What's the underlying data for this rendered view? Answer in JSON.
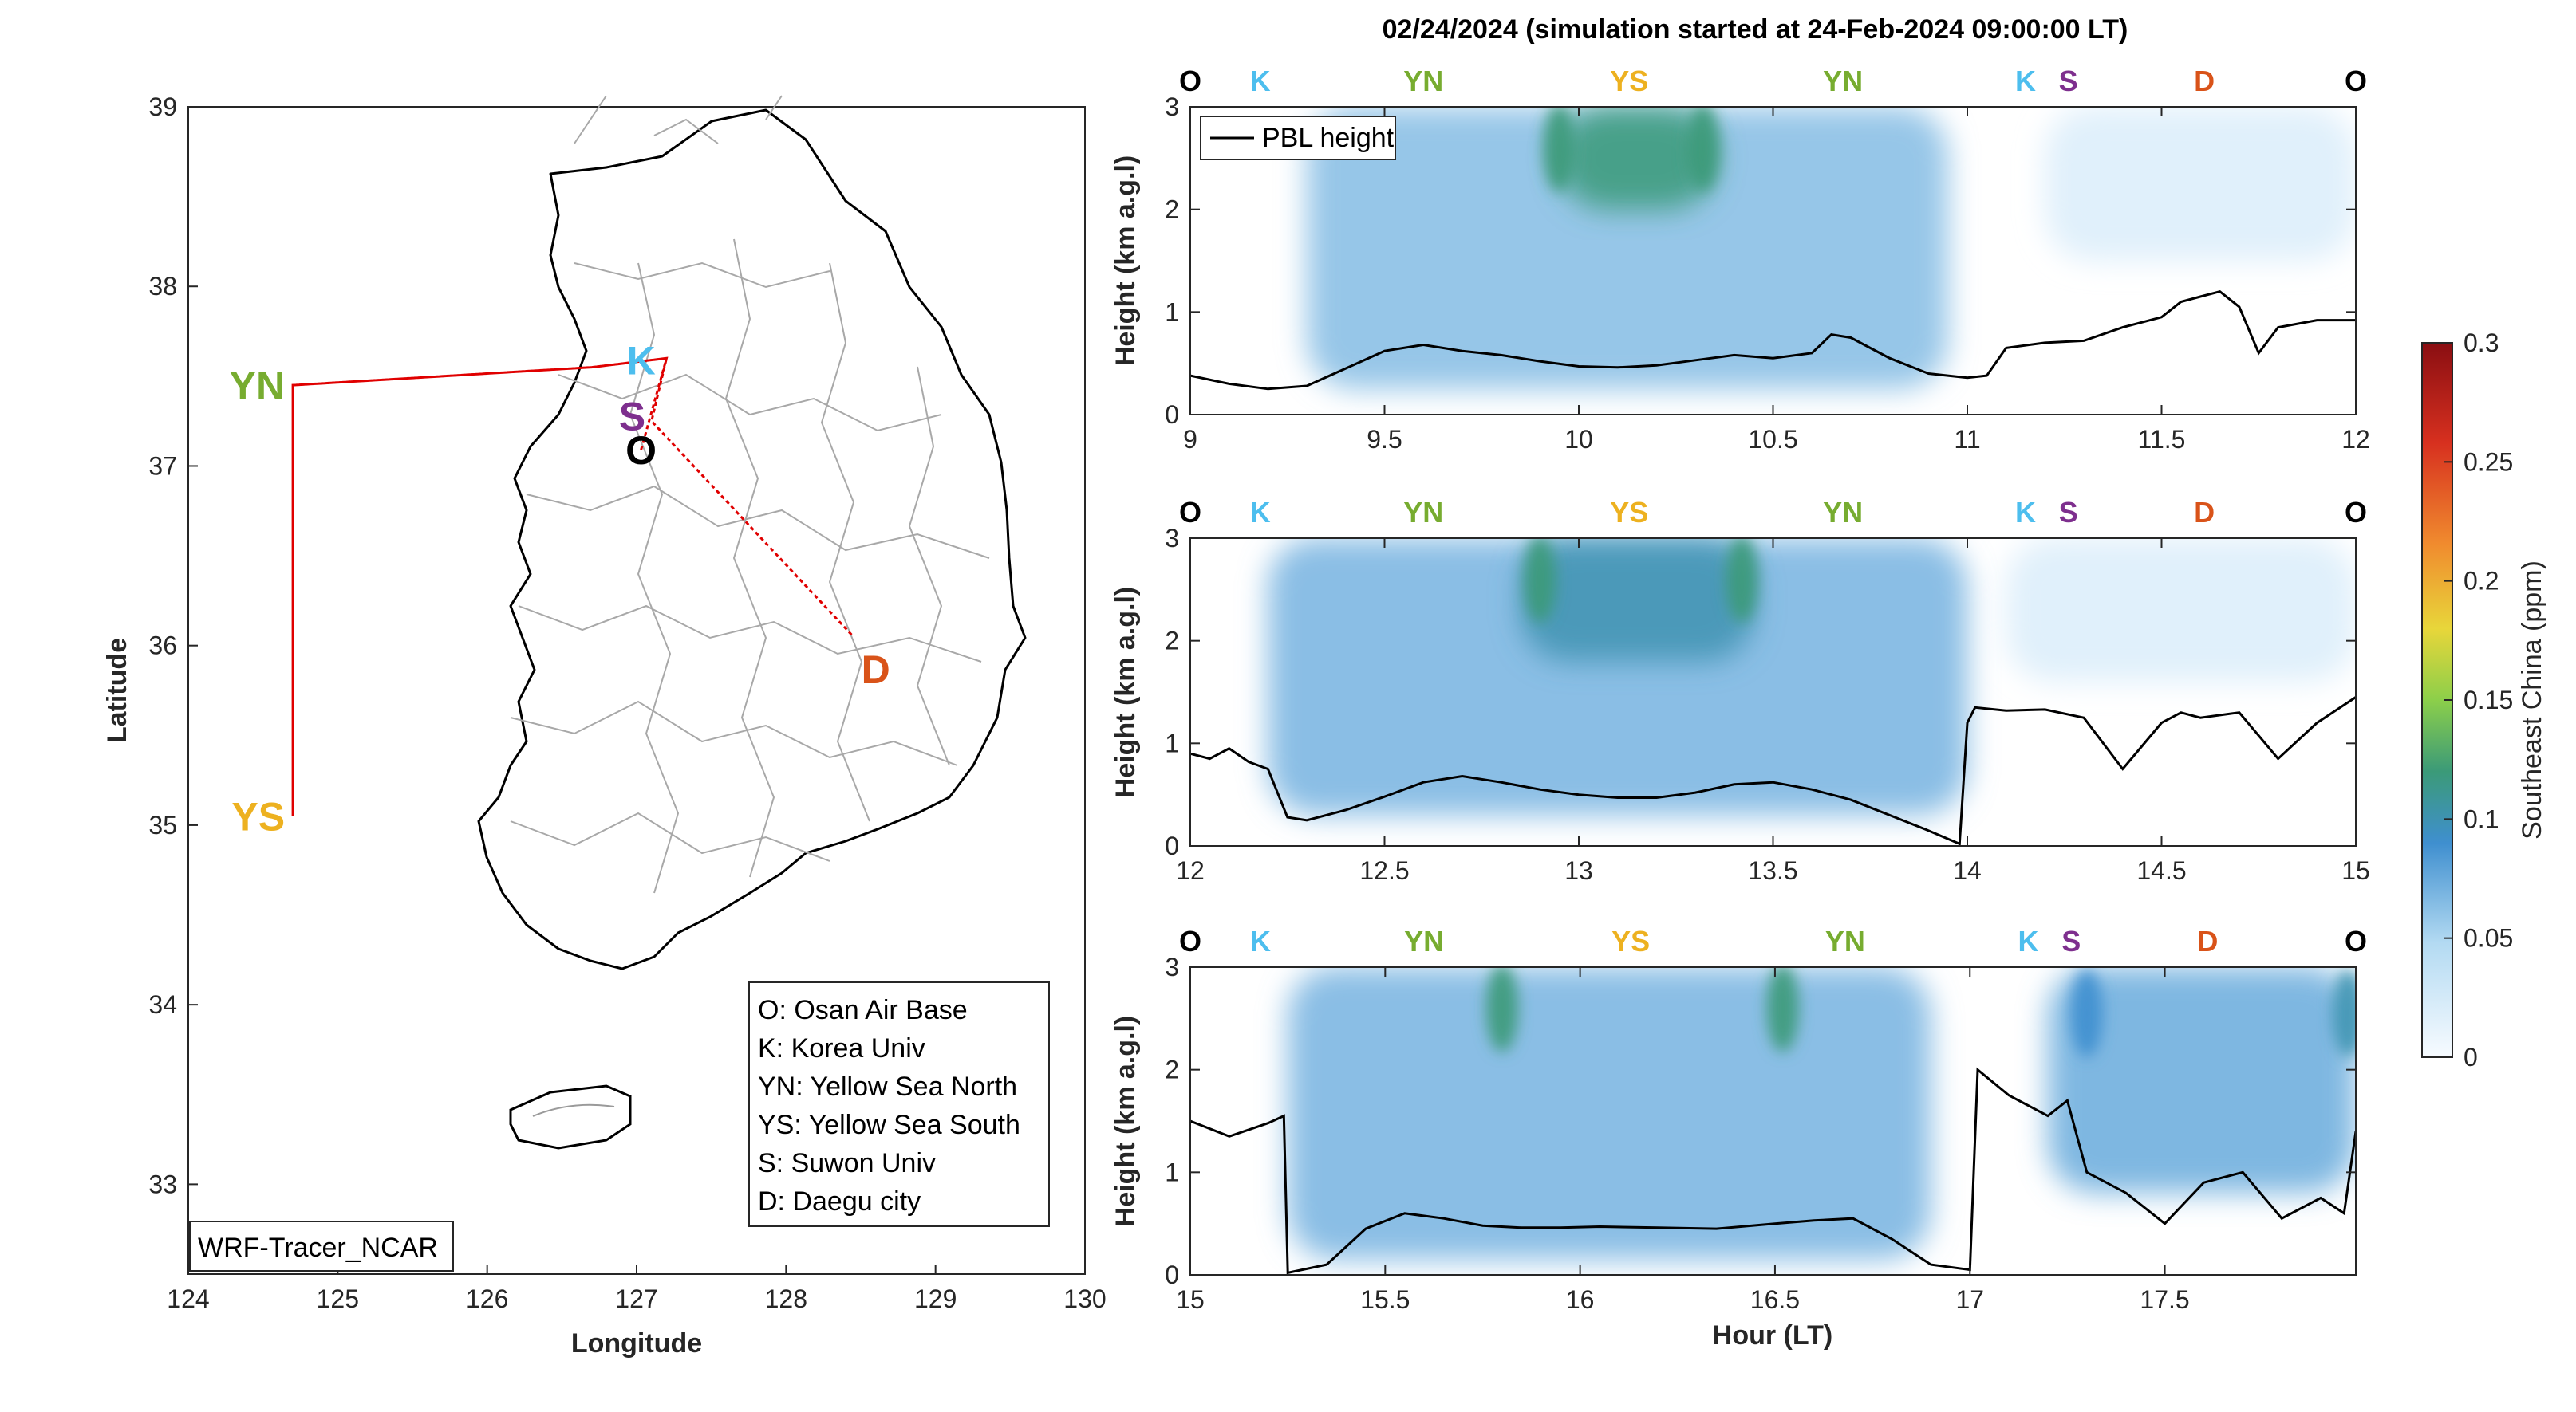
{
  "title": "02/24/2024 (simulation started at 24-Feb-2024 09:00:00 LT)",
  "colors": {
    "O": "#000000",
    "K": "#4DBEEE",
    "YN": "#77AC30",
    "YS": "#EDB120",
    "S": "#7E2F8E",
    "D": "#D95319",
    "track": "#e00000",
    "pbl": "#000000",
    "axis": "#262626"
  },
  "map": {
    "xlabel": "Longitude",
    "ylabel": "Latitude",
    "xlim": [
      124,
      130
    ],
    "ylim": [
      32.5,
      39
    ],
    "xticks": [
      "124",
      "125",
      "126",
      "127",
      "128",
      "129",
      "130"
    ],
    "yticks": [
      "33",
      "34",
      "35",
      "36",
      "37",
      "38",
      "39"
    ],
    "label_box": "WRF-Tracer_NCAR",
    "legend": [
      "O: Osan Air Base",
      "K: Korea Univ",
      "YN: Yellow Sea North",
      "YS: Yellow Sea South",
      "S: Suwon Univ",
      "D: Daegu city"
    ],
    "sites": [
      {
        "id": "K",
        "label": "K",
        "lon": 127.03,
        "lat": 37.59
      },
      {
        "id": "YN",
        "label": "YN",
        "lon": 124.7,
        "lat": 37.45
      },
      {
        "id": "S",
        "label": "S",
        "lon": 126.97,
        "lat": 37.28
      },
      {
        "id": "O",
        "label": "O",
        "lon": 127.03,
        "lat": 37.09
      },
      {
        "id": "D",
        "label": "D",
        "lon": 128.6,
        "lat": 35.87
      },
      {
        "id": "YS",
        "label": "YS",
        "lon": 124.7,
        "lat": 35.05
      }
    ],
    "track": [
      [
        127.03,
        37.09
      ],
      [
        127.2,
        37.6
      ],
      [
        126.7,
        37.55
      ],
      [
        124.7,
        37.45
      ],
      [
        124.7,
        35.05
      ],
      [
        124.7,
        37.45
      ],
      [
        126.7,
        37.55
      ],
      [
        127.2,
        37.6
      ],
      [
        127.1,
        37.25
      ],
      [
        128.45,
        36.05
      ]
    ]
  },
  "colorbar": {
    "label": "Southeast China (ppm)",
    "ticks": [
      "0",
      "0.05",
      "0.1",
      "0.15",
      "0.2",
      "0.25",
      "0.3"
    ],
    "range": [
      0,
      0.3
    ]
  },
  "panels_common": {
    "ylabel": "Height (km a.g.l)",
    "xlabel": "Hour (LT)",
    "ylim": [
      0,
      3
    ],
    "yticks": [
      "0",
      "1",
      "2",
      "3"
    ],
    "legend": "PBL height"
  },
  "chart_data": [
    {
      "type": "heatmap",
      "x_range": [
        9,
        12
      ],
      "xticks": [
        "9",
        "9.5",
        "10",
        "10.5",
        "11",
        "11.5",
        "12"
      ],
      "xtick_values": [
        9,
        9.5,
        10,
        10.5,
        11,
        11.5,
        12
      ],
      "site_labels": [
        {
          "label": "O",
          "id": "O",
          "x": 9.0
        },
        {
          "label": "K",
          "id": "K",
          "x": 9.18
        },
        {
          "label": "YN",
          "id": "YN",
          "x": 9.6
        },
        {
          "label": "YS",
          "id": "YS",
          "x": 10.13
        },
        {
          "label": "YN",
          "id": "YN",
          "x": 10.68
        },
        {
          "label": "K",
          "id": "K",
          "x": 11.15
        },
        {
          "label": "S",
          "id": "S",
          "x": 11.26
        },
        {
          "label": "D",
          "id": "D",
          "x": 11.61
        },
        {
          "label": "O",
          "id": "O",
          "x": 12.0
        }
      ],
      "plumes": [
        {
          "x0": 9.3,
          "x1": 10.95,
          "ybot": 0.25,
          "ytop": 3.0,
          "peak": 0.065
        },
        {
          "x0": 9.95,
          "x1": 10.35,
          "ybot": 2.0,
          "ytop": 3.0,
          "peak": 0.12
        },
        {
          "x0": 11.2,
          "x1": 12.0,
          "ybot": 1.5,
          "ytop": 3.0,
          "peak": 0.02
        }
      ],
      "hotspots": [
        {
          "x": 9.95,
          "y": 2.6,
          "peak": 0.12
        },
        {
          "x": 10.32,
          "y": 2.6,
          "peak": 0.12
        }
      ],
      "pbl": {
        "x": [
          9.0,
          9.1,
          9.2,
          9.3,
          9.4,
          9.5,
          9.6,
          9.7,
          9.8,
          9.9,
          10.0,
          10.1,
          10.2,
          10.3,
          10.4,
          10.5,
          10.6,
          10.65,
          10.7,
          10.8,
          10.9,
          11.0,
          11.05,
          11.1,
          11.2,
          11.3,
          11.4,
          11.5,
          11.55,
          11.6,
          11.65,
          11.7,
          11.75,
          11.8,
          11.9,
          12.0
        ],
        "y": [
          0.38,
          0.3,
          0.25,
          0.28,
          0.45,
          0.62,
          0.68,
          0.62,
          0.58,
          0.52,
          0.47,
          0.46,
          0.48,
          0.53,
          0.58,
          0.55,
          0.6,
          0.78,
          0.75,
          0.55,
          0.4,
          0.36,
          0.38,
          0.65,
          0.7,
          0.72,
          0.85,
          0.95,
          1.1,
          1.15,
          1.2,
          1.05,
          0.6,
          0.85,
          0.92,
          0.92
        ]
      }
    },
    {
      "type": "heatmap",
      "x_range": [
        12,
        15
      ],
      "xticks": [
        "12",
        "12.5",
        "13",
        "13.5",
        "14",
        "14.5",
        "15"
      ],
      "xtick_values": [
        12,
        12.5,
        13,
        13.5,
        14,
        14.5,
        15
      ],
      "site_labels": [
        {
          "label": "O",
          "id": "O",
          "x": 12.0
        },
        {
          "label": "K",
          "id": "K",
          "x": 12.18
        },
        {
          "label": "YN",
          "id": "YN",
          "x": 12.6
        },
        {
          "label": "YS",
          "id": "YS",
          "x": 13.13
        },
        {
          "label": "YN",
          "id": "YN",
          "x": 13.68
        },
        {
          "label": "K",
          "id": "K",
          "x": 14.15
        },
        {
          "label": "S",
          "id": "S",
          "x": 14.26
        },
        {
          "label": "D",
          "id": "D",
          "x": 14.61
        },
        {
          "label": "O",
          "id": "O",
          "x": 15.0
        }
      ],
      "plumes": [
        {
          "x0": 12.2,
          "x1": 14.0,
          "ybot": 0.3,
          "ytop": 3.0,
          "peak": 0.07
        },
        {
          "x0": 12.85,
          "x1": 13.45,
          "ybot": 1.8,
          "ytop": 3.0,
          "peak": 0.1
        },
        {
          "x0": 14.1,
          "x1": 15.0,
          "ybot": 1.6,
          "ytop": 3.0,
          "peak": 0.02
        }
      ],
      "hotspots": [
        {
          "x": 12.9,
          "y": 2.6,
          "peak": 0.12
        },
        {
          "x": 13.42,
          "y": 2.6,
          "peak": 0.12
        }
      ],
      "pbl": {
        "x": [
          12.0,
          12.05,
          12.1,
          12.15,
          12.2,
          12.25,
          12.3,
          12.4,
          12.5,
          12.6,
          12.7,
          12.8,
          12.9,
          13.0,
          13.1,
          13.2,
          13.3,
          13.4,
          13.5,
          13.6,
          13.7,
          13.8,
          13.9,
          13.98,
          14.0,
          14.02,
          14.1,
          14.2,
          14.3,
          14.4,
          14.5,
          14.55,
          14.6,
          14.7,
          14.8,
          14.9,
          15.0
        ],
        "y": [
          0.9,
          0.85,
          0.95,
          0.82,
          0.75,
          0.28,
          0.25,
          0.35,
          0.48,
          0.62,
          0.68,
          0.62,
          0.55,
          0.5,
          0.47,
          0.47,
          0.52,
          0.6,
          0.62,
          0.55,
          0.45,
          0.3,
          0.15,
          0.02,
          1.2,
          1.35,
          1.32,
          1.33,
          1.25,
          0.75,
          1.2,
          1.3,
          1.25,
          1.3,
          0.85,
          1.2,
          1.45
        ]
      }
    },
    {
      "type": "heatmap",
      "x_range": [
        15,
        17.99
      ],
      "xticks": [
        "15",
        "15.5",
        "16",
        "16.5",
        "17",
        "17.5"
      ],
      "xtick_values": [
        15,
        15.5,
        16,
        16.5,
        17,
        17.5
      ],
      "site_labels": [
        {
          "label": "O",
          "id": "O",
          "x": 15.0
        },
        {
          "label": "K",
          "id": "K",
          "x": 15.18
        },
        {
          "label": "YN",
          "id": "YN",
          "x": 15.6
        },
        {
          "label": "YS",
          "id": "YS",
          "x": 16.13
        },
        {
          "label": "YN",
          "id": "YN",
          "x": 16.68
        },
        {
          "label": "K",
          "id": "K",
          "x": 17.15
        },
        {
          "label": "S",
          "id": "S",
          "x": 17.26
        },
        {
          "label": "D",
          "id": "D",
          "x": 17.61
        },
        {
          "label": "O",
          "id": "O",
          "x": 17.99
        }
      ],
      "plumes": [
        {
          "x0": 15.25,
          "x1": 16.9,
          "ybot": 0.15,
          "ytop": 3.0,
          "peak": 0.07
        },
        {
          "x0": 17.2,
          "x1": 17.99,
          "ybot": 0.8,
          "ytop": 3.0,
          "peak": 0.075
        }
      ],
      "hotspots": [
        {
          "x": 15.8,
          "y": 2.6,
          "peak": 0.12
        },
        {
          "x": 16.52,
          "y": 2.6,
          "peak": 0.12
        },
        {
          "x": 17.3,
          "y": 2.55,
          "peak": 0.09
        },
        {
          "x": 17.97,
          "y": 2.55,
          "peak": 0.1
        }
      ],
      "pbl": {
        "x": [
          15.0,
          15.1,
          15.2,
          15.24,
          15.25,
          15.35,
          15.45,
          15.55,
          15.65,
          15.75,
          15.85,
          15.95,
          16.05,
          16.2,
          16.35,
          16.5,
          16.6,
          16.7,
          16.8,
          16.9,
          17.0,
          17.02,
          17.1,
          17.2,
          17.25,
          17.3,
          17.4,
          17.5,
          17.6,
          17.7,
          17.8,
          17.9,
          17.96,
          17.99
        ],
        "y": [
          1.5,
          1.35,
          1.48,
          1.55,
          0.02,
          0.1,
          0.45,
          0.6,
          0.55,
          0.48,
          0.46,
          0.46,
          0.47,
          0.46,
          0.45,
          0.5,
          0.53,
          0.55,
          0.35,
          0.1,
          0.05,
          2.0,
          1.75,
          1.55,
          1.7,
          1.0,
          0.8,
          0.5,
          0.9,
          1.0,
          0.55,
          0.75,
          0.6,
          1.4
        ]
      }
    }
  ]
}
